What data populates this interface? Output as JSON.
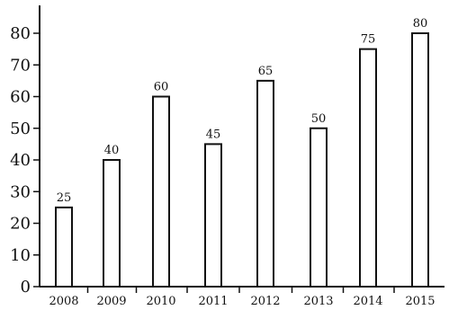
{
  "chart_data": {
    "type": "bar",
    "categories": [
      "2008",
      "2009",
      "2010",
      "2011",
      "2012",
      "2013",
      "2014",
      "2015"
    ],
    "values": [
      25,
      40,
      60,
      45,
      65,
      50,
      75,
      80
    ],
    "data_labels": [
      "25",
      "40",
      "60",
      "45",
      "65",
      "50",
      "75",
      "80"
    ],
    "yticks": [
      0,
      10,
      20,
      30,
      40,
      50,
      60,
      70,
      80
    ],
    "ylim": [
      0,
      85
    ],
    "title": "",
    "xlabel": "",
    "ylabel": "",
    "grid": false,
    "legend": "none",
    "bar_fill": "#ffffff",
    "bar_stroke": "#111111"
  }
}
